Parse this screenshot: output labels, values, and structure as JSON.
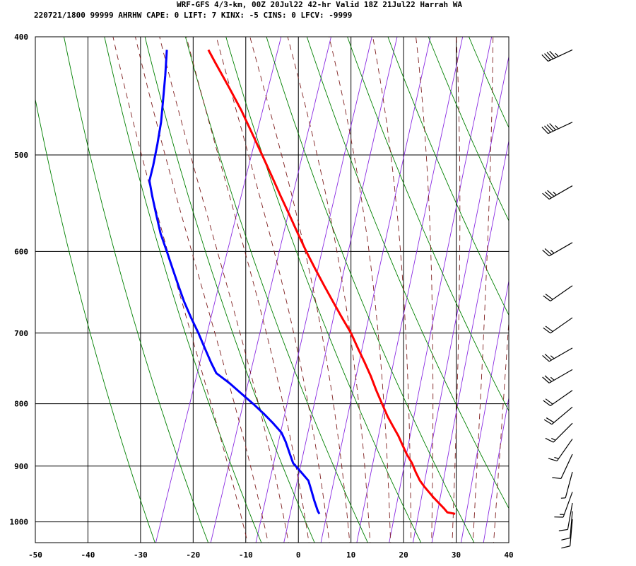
{
  "header": {
    "line1": "WRF-GFS 4/3-km, 00Z 20Jul22 42-hr Valid 18Z 21Jul22 Harrah WA",
    "line2": "220721/1800 99999  AHRHW   CAPE:     0 LIFT:     7 KINX:    -5 CINS:     0 LFCV: -9999"
  },
  "colors": {
    "temperature": "#ff0000",
    "dewpoint": "#0000ff",
    "isotherm": "#000000",
    "isobar": "#000000",
    "dry_adiabat": "#008000",
    "moist_adiabat": "#7f1f1f",
    "mixing_ratio": "#8a2be2",
    "wind_barb": "#000000"
  },
  "chart_data": {
    "type": "line",
    "subtype": "skew-t log-p sounding",
    "x_unit": "degC",
    "y_unit": "hPa",
    "y_scale": "log",
    "xlim": [
      -50,
      40
    ],
    "ylim": [
      1040,
      400
    ],
    "x_ticks": [
      -50,
      -40,
      -30,
      -20,
      -10,
      0,
      10,
      20,
      30,
      40
    ],
    "x_tick_labels": [
      "-50",
      "-40",
      "-30",
      "-20",
      "-10",
      "0",
      "10",
      "20",
      "30",
      "40"
    ],
    "y_ticks": [
      400,
      500,
      600,
      700,
      800,
      900,
      1000
    ],
    "y_tick_labels": [
      "400",
      "500",
      "600",
      "700",
      "800",
      "900",
      "1000"
    ],
    "grid": true,
    "series": [
      {
        "key": "temperature",
        "points": [
          [
            985,
            29.8
          ],
          [
            982,
            28.3
          ],
          [
            975,
            27.7
          ],
          [
            965,
            26.7
          ],
          [
            955,
            25.7
          ],
          [
            945,
            24.8
          ],
          [
            935,
            23.9
          ],
          [
            925,
            23.1
          ],
          [
            910,
            22.3
          ],
          [
            895,
            21.6
          ],
          [
            880,
            20.6
          ],
          [
            865,
            19.8
          ],
          [
            850,
            19.0
          ],
          [
            835,
            18.0
          ],
          [
            820,
            17.0
          ],
          [
            800,
            15.9
          ],
          [
            780,
            14.8
          ],
          [
            760,
            13.8
          ],
          [
            740,
            12.6
          ],
          [
            720,
            11.3
          ],
          [
            700,
            10.0
          ],
          [
            680,
            8.3
          ],
          [
            660,
            6.6
          ],
          [
            640,
            4.9
          ],
          [
            620,
            3.2
          ],
          [
            600,
            1.5
          ],
          [
            580,
            -0.1
          ],
          [
            560,
            -1.7
          ],
          [
            540,
            -3.4
          ],
          [
            520,
            -5.1
          ],
          [
            500,
            -6.9
          ],
          [
            480,
            -8.8
          ],
          [
            460,
            -10.8
          ],
          [
            440,
            -13.2
          ],
          [
            420,
            -15.8
          ],
          [
            410,
            -17.1
          ]
        ]
      },
      {
        "key": "dewpoint",
        "points": [
          [
            985,
            4.0
          ],
          [
            980,
            3.7
          ],
          [
            960,
            3.0
          ],
          [
            940,
            2.4
          ],
          [
            925,
            1.9
          ],
          [
            910,
            0.5
          ],
          [
            895,
            -1.0
          ],
          [
            880,
            -1.6
          ],
          [
            860,
            -2.4
          ],
          [
            845,
            -3.2
          ],
          [
            830,
            -4.8
          ],
          [
            815,
            -6.6
          ],
          [
            800,
            -8.6
          ],
          [
            785,
            -10.8
          ],
          [
            770,
            -13.0
          ],
          [
            755,
            -15.6
          ],
          [
            740,
            -16.6
          ],
          [
            720,
            -17.8
          ],
          [
            700,
            -19.0
          ],
          [
            680,
            -20.4
          ],
          [
            660,
            -21.7
          ],
          [
            640,
            -22.8
          ],
          [
            620,
            -23.9
          ],
          [
            600,
            -25.0
          ],
          [
            580,
            -26.2
          ],
          [
            560,
            -27.0
          ],
          [
            540,
            -27.8
          ],
          [
            525,
            -28.3
          ],
          [
            510,
            -27.6
          ],
          [
            490,
            -26.8
          ],
          [
            470,
            -26.1
          ],
          [
            450,
            -25.7
          ],
          [
            430,
            -25.3
          ],
          [
            410,
            -25.0
          ]
        ]
      }
    ],
    "isotherms_degC": [
      -140,
      -130,
      -120,
      -110,
      -100,
      -90,
      -80,
      -70,
      -60,
      -50,
      -40,
      -30,
      -20,
      -10,
      0,
      10,
      20,
      30,
      40
    ],
    "dry_adiabats_degC_at_1000hPa": [
      -30,
      -20,
      -10,
      0,
      10,
      20,
      30,
      40,
      50,
      60,
      70,
      80,
      90,
      100,
      110,
      120
    ],
    "moist_adiabats_degC_at_1000hPa": [
      -12,
      -8,
      -4,
      0,
      4,
      8,
      12,
      16,
      20,
      24,
      28,
      32,
      36
    ],
    "mixing_ratio_lines_g_per_kg": [
      0.4,
      1,
      2,
      3,
      5,
      8,
      12,
      16,
      20,
      28,
      36
    ],
    "wind_barbs": [
      {
        "p": 410,
        "dir_deg": 245,
        "spd_kt": 45
      },
      {
        "p": 470,
        "dir_deg": 245,
        "spd_kt": 45
      },
      {
        "p": 530,
        "dir_deg": 240,
        "spd_kt": 35
      },
      {
        "p": 590,
        "dir_deg": 240,
        "spd_kt": 25
      },
      {
        "p": 640,
        "dir_deg": 235,
        "spd_kt": 20
      },
      {
        "p": 680,
        "dir_deg": 235,
        "spd_kt": 20
      },
      {
        "p": 720,
        "dir_deg": 240,
        "spd_kt": 25
      },
      {
        "p": 750,
        "dir_deg": 240,
        "spd_kt": 25
      },
      {
        "p": 780,
        "dir_deg": 235,
        "spd_kt": 20
      },
      {
        "p": 805,
        "dir_deg": 230,
        "spd_kt": 20
      },
      {
        "p": 830,
        "dir_deg": 225,
        "spd_kt": 15
      },
      {
        "p": 855,
        "dir_deg": 215,
        "spd_kt": 15
      },
      {
        "p": 880,
        "dir_deg": 205,
        "spd_kt": 10
      },
      {
        "p": 910,
        "dir_deg": 195,
        "spd_kt": 5
      },
      {
        "p": 945,
        "dir_deg": 200,
        "spd_kt": 15
      },
      {
        "p": 965,
        "dir_deg": 190,
        "spd_kt": 10
      },
      {
        "p": 980,
        "dir_deg": 185,
        "spd_kt": 10
      },
      {
        "p": 995,
        "dir_deg": 185,
        "spd_kt": 10
      }
    ]
  }
}
